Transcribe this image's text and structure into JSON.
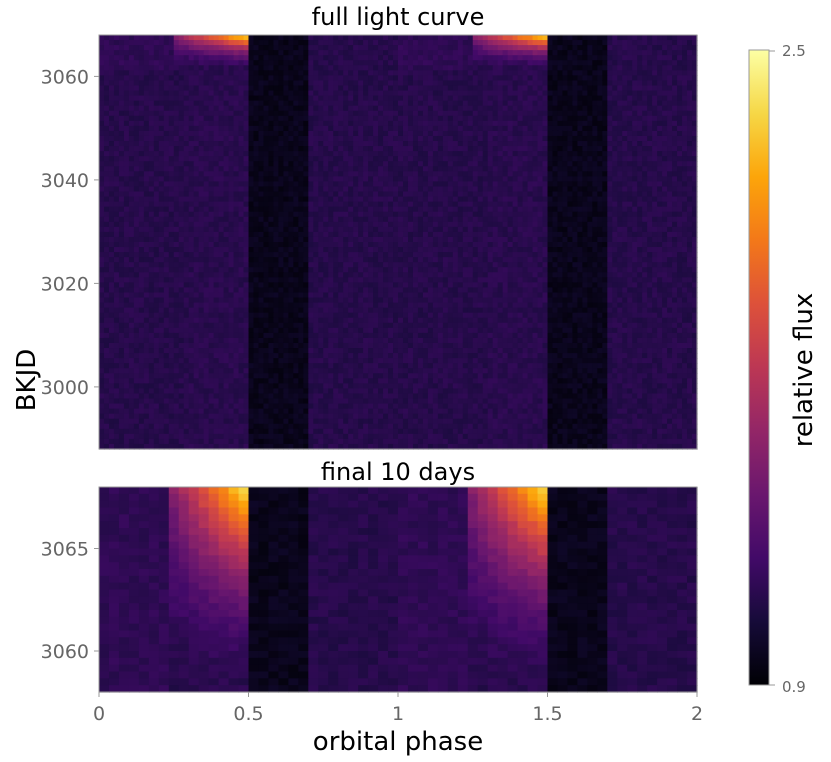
{
  "chart_data": [
    {
      "type": "heatmap",
      "title": "full light curve",
      "xlabel": "orbital phase",
      "ylabel": "BKJD",
      "xlim": [
        0,
        2
      ],
      "ylim": [
        2988,
        3068
      ],
      "x_ticks": [
        "0",
        "0.5",
        "1",
        "1.5",
        "2"
      ],
      "y_ticks": [
        "3000",
        "3020",
        "3040",
        "3060"
      ],
      "colormap": "inferno",
      "bright_phase": [
        0.3,
        0.5
      ],
      "dark_phase": [
        0.5,
        0.7
      ],
      "flare_start_bkjd": 3061
    },
    {
      "type": "heatmap",
      "title": "final 10 days",
      "xlabel": "orbital phase",
      "ylabel": "BKJD",
      "xlim": [
        0,
        2
      ],
      "ylim": [
        3058,
        3068
      ],
      "x_ticks": [
        "0",
        "0.5",
        "1",
        "1.5",
        "2"
      ],
      "y_ticks": [
        "3060",
        "3065"
      ],
      "colormap": "inferno",
      "bright_phase": [
        0.3,
        0.5
      ],
      "dark_phase": [
        0.5,
        0.7
      ]
    }
  ],
  "colorbar": {
    "label": "relative flux",
    "min_label": "0.9",
    "max_label": "2.5",
    "min": 0.9,
    "max": 2.5
  }
}
